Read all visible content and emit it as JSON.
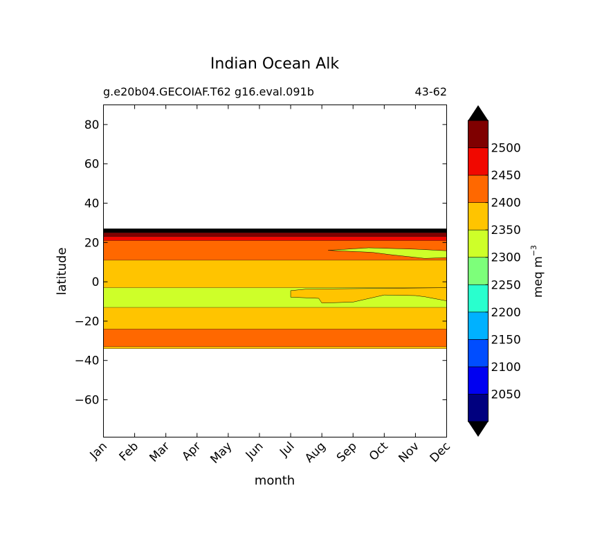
{
  "chart_data": {
    "type": "filled-contour",
    "title": "Indian Ocean Alk",
    "subtitle_left": "g.e20b04.GECOIAF.T62 g16.eval.091b",
    "subtitle_right": "43-62",
    "xlabel": "month",
    "ylabel": "latitude",
    "x_categories": [
      "Jan",
      "Feb",
      "Mar",
      "Apr",
      "May",
      "Jun",
      "Jul",
      "Aug",
      "Sep",
      "Oct",
      "Nov",
      "Dec"
    ],
    "ylim": [
      -79,
      90
    ],
    "y_ticks": [
      80,
      60,
      40,
      20,
      0,
      -20,
      -40,
      -60
    ],
    "y_tick_labels": [
      "80",
      "60",
      "40",
      "20",
      "0",
      "−20",
      "−40",
      "−60"
    ],
    "colorbar": {
      "label": "meq m",
      "label_superscript": "−3",
      "levels": [
        2000,
        2050,
        2100,
        2150,
        2200,
        2250,
        2300,
        2350,
        2400,
        2450,
        2500,
        2550
      ],
      "tick_labels": [
        "2050",
        "2100",
        "2150",
        "2200",
        "2250",
        "2300",
        "2350",
        "2400",
        "2450",
        "2500"
      ],
      "colors": [
        "#00007f",
        "#0000f1",
        "#004dff",
        "#00b1ff",
        "#29ffce",
        "#7dff7a",
        "#ceff29",
        "#ffc400",
        "#ff6800",
        "#f10800",
        "#7f0000"
      ],
      "under_color": "#000000",
      "over_color": "#000000",
      "extend": "both"
    },
    "bands": [
      {
        "lat_min": -34,
        "lat_max": -33,
        "value_range": [
          2350,
          2400
        ]
      },
      {
        "lat_min": -33,
        "lat_max": -24,
        "value_range": [
          2400,
          2450
        ]
      },
      {
        "lat_min": -24,
        "lat_max": -13,
        "value_range": [
          2350,
          2400
        ]
      },
      {
        "lat_min": -13,
        "lat_max": -3,
        "value_range": [
          2300,
          2350
        ],
        "note": "Jan to Aug; 2350-2400 from Aug to Dec"
      },
      {
        "lat_min": -3,
        "lat_max": 11,
        "value_range": [
          2350,
          2400
        ]
      },
      {
        "lat_min": 11,
        "lat_max": 21,
        "value_range": [
          2400,
          2450
        ]
      },
      {
        "lat_min": 21,
        "lat_max": 23,
        "value_range": [
          2450,
          2500
        ]
      },
      {
        "lat_min": 23,
        "lat_max": 25,
        "value_range": [
          2500,
          2550
        ]
      },
      {
        "lat_min": 25,
        "lat_max": 27,
        "value_range": [
          2550,
          null
        ]
      }
    ]
  }
}
